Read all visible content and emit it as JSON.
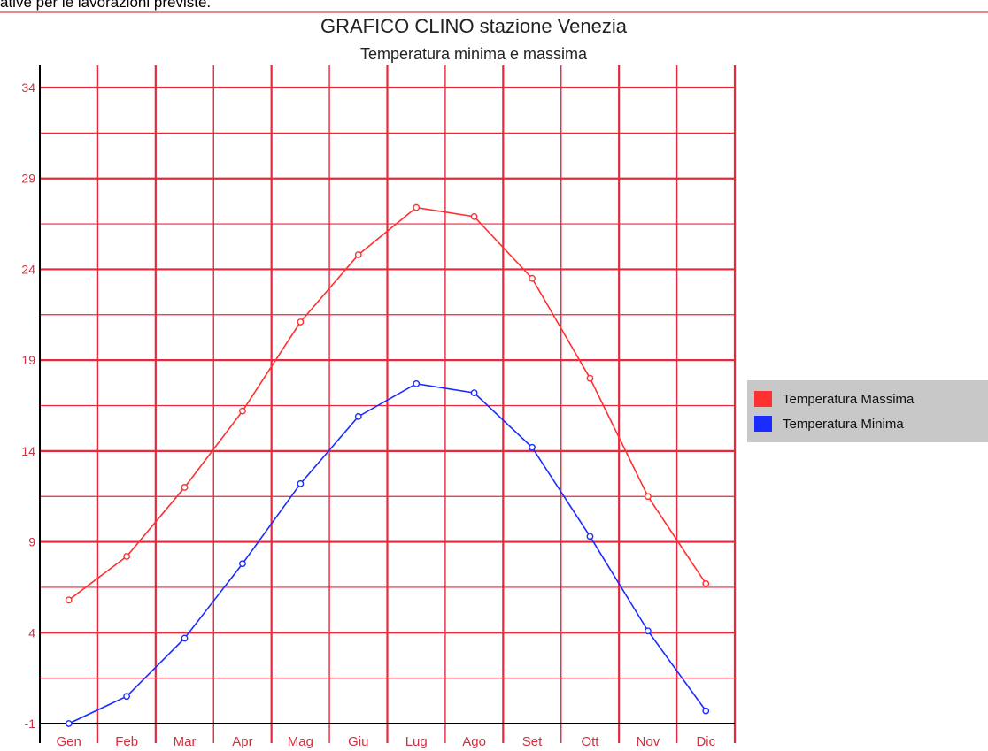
{
  "page": {
    "top_text_fragment": "ative per le lavorazioni previste."
  },
  "colors": {
    "grid": "#e8283c",
    "series_max": "#ff3030",
    "series_min": "#1a2cff",
    "axis": "#000000",
    "legend_bg": "#c8c8c8"
  },
  "chart_data": {
    "type": "line",
    "title": "GRAFICO CLINO stazione Venezia",
    "subtitle": "Temperatura minima e massima",
    "categories": [
      "Gen",
      "Feb",
      "Mar",
      "Apr",
      "Mag",
      "Giu",
      "Lug",
      "Ago",
      "Set",
      "Ott",
      "Nov",
      "Dic"
    ],
    "yticks": [
      "34",
      "29",
      "24",
      "19",
      "14",
      "9",
      "4",
      "-1"
    ],
    "ylim": [
      -1,
      34
    ],
    "grid": true,
    "legend_position": "right",
    "series": [
      {
        "name": "Temperatura Massima",
        "color": "#ff3030",
        "values": [
          5.8,
          8.2,
          12.0,
          16.2,
          21.1,
          24.8,
          27.4,
          26.9,
          23.5,
          18.0,
          11.5,
          6.7
        ]
      },
      {
        "name": "Temperatura Minima",
        "color": "#1a2cff",
        "values": [
          -1.0,
          0.5,
          3.7,
          7.8,
          12.2,
          15.9,
          17.7,
          17.2,
          14.2,
          9.3,
          4.1,
          -0.3
        ]
      }
    ]
  }
}
